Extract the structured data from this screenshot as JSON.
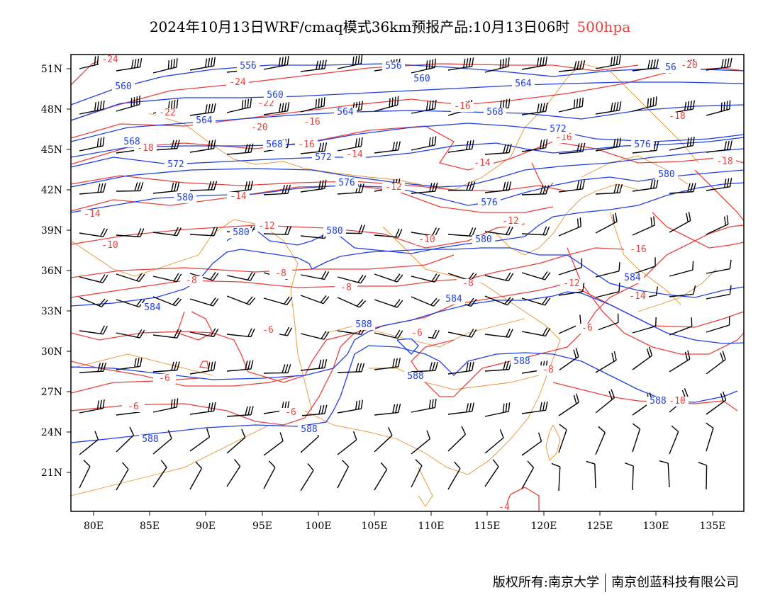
{
  "title": {
    "main": "2024年10月13日WRF/cmaq模式36km预报产品:10月13日06时",
    "level": "500hpa"
  },
  "colors": {
    "temperature": "#e8413c",
    "height": "#1f3ee6",
    "border": "#e8902c",
    "wind": "#000000"
  },
  "map": {
    "lat_labels": [
      "51N",
      "48N",
      "45N",
      "42N",
      "39N",
      "36N",
      "33N",
      "30N",
      "27N",
      "24N",
      "21N"
    ],
    "lon_labels": [
      "80E",
      "85E",
      "90E",
      "95E",
      "100E",
      "105E",
      "110E",
      "115E",
      "120E",
      "125E",
      "130E",
      "135E"
    ]
  },
  "temp_labels": [
    "-24",
    "-24",
    "-22",
    "-22",
    "-20",
    "-16",
    "-16",
    "-18",
    "-18",
    "-16",
    "-14",
    "-14",
    "-14",
    "-14",
    "-12",
    "-12",
    "-12",
    "-10",
    "-10",
    "-8",
    "-8",
    "-8",
    "-8",
    "-6",
    "-6",
    "-6",
    "-6",
    "-6",
    "-6",
    "-8",
    "-10",
    "-12",
    "-14",
    "-16",
    "-16",
    "-18",
    "-20",
    "-4"
  ],
  "height_labels": [
    "556",
    "556",
    "560",
    "560",
    "560",
    "564",
    "564",
    "564",
    "568",
    "568",
    "568",
    "572",
    "572",
    "572",
    "576",
    "576",
    "576",
    "580",
    "580",
    "580",
    "580",
    "580",
    "584",
    "584",
    "584",
    "588",
    "588",
    "588",
    "588",
    "588",
    "588",
    "56"
  ],
  "footer": {
    "left": "版权所有:南京大学",
    "right": "南京创蓝科技有限公司"
  }
}
